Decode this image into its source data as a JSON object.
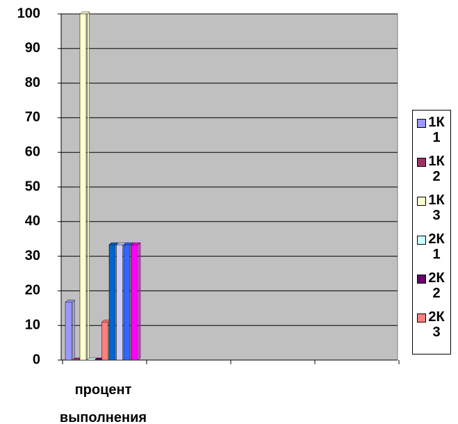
{
  "chart_data": {
    "type": "bar",
    "categories": [
      "процент выполнения",
      null,
      null,
      null
    ],
    "series": [
      {
        "name": "1К 1",
        "color": "#9999ff",
        "values": [
          16.7,
          null,
          null,
          null
        ]
      },
      {
        "name": "1К 2",
        "color": "#993366",
        "values": [
          0,
          null,
          null,
          null
        ]
      },
      {
        "name": "1К 3",
        "color": "#ffffcc",
        "values": [
          100,
          null,
          null,
          null
        ]
      },
      {
        "name": "2К 1",
        "color": "#ccffff",
        "values": [
          0,
          null,
          null,
          null
        ]
      },
      {
        "name": "2К 2",
        "color": "#660066",
        "values": [
          0,
          null,
          null,
          null
        ]
      },
      {
        "name": "2К 3",
        "color": "#ff8080",
        "values": [
          11,
          null,
          null,
          null
        ]
      },
      {
        "color": "#0066cc",
        "values": [
          33.3,
          null,
          null,
          null
        ]
      },
      {
        "color": "#ccccff",
        "values": [
          33.3,
          null,
          null,
          null
        ]
      },
      {
        "color": "#3366ff",
        "values": [
          33.3,
          null,
          null,
          null
        ]
      },
      {
        "color": "#ff00ff",
        "values": [
          33.3,
          null,
          null,
          null
        ]
      }
    ],
    "ylim": [
      0,
      100
    ],
    "yticks": [
      0,
      10,
      20,
      30,
      40,
      50,
      60,
      70,
      80,
      90,
      100
    ],
    "grid": true,
    "legend": "right"
  }
}
